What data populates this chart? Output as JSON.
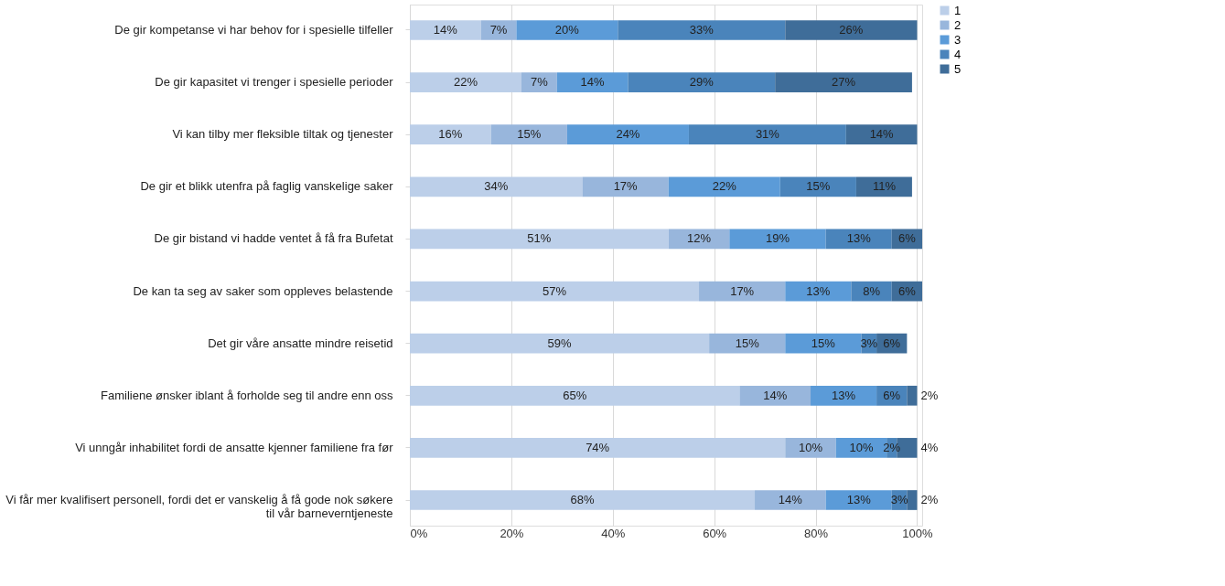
{
  "chart_data": {
    "type": "bar",
    "orientation": "horizontal",
    "stacked": true,
    "grid": "x",
    "legend": "right",
    "categories": [
      "De gir kompetanse vi har behov for i spesielle tilfeller",
      "De gir kapasitet vi trenger i spesielle perioder",
      "Vi kan tilby mer fleksible tiltak og tjenester",
      "De gir et blikk utenfra på faglig vanskelige saker",
      "De gir bistand vi hadde ventet å få fra Bufetat",
      "De kan ta seg av saker som oppleves belastende",
      "Det gir våre ansatte mindre reisetid",
      "Familiene ønsker iblant å forholde seg til andre enn oss",
      "Vi unngår inhabilitet fordi de ansatte kjenner familiene fra før",
      "Vi får mer kvalifisert personell, fordi det er vanskelig å få gode nok søkere til vår barneverntjeneste"
    ],
    "series": [
      {
        "name": "1",
        "color": "#bccfe9",
        "values": [
          14,
          22,
          16,
          34,
          51,
          57,
          59,
          65,
          74,
          68
        ],
        "value_labels": [
          "14%",
          "22%",
          "16%",
          "34%",
          "51%",
          "57%",
          "59%",
          "65%",
          "74%",
          "68%"
        ]
      },
      {
        "name": "2",
        "color": "#98b6dc",
        "values": [
          7,
          7,
          15,
          17,
          12,
          17,
          15,
          14,
          10,
          14
        ],
        "value_labels": [
          "7%",
          "7%",
          "15%",
          "17%",
          "12%",
          "17%",
          "15%",
          "14%",
          "10%",
          "14%"
        ]
      },
      {
        "name": "3",
        "color": "#5b9bd8",
        "values": [
          20,
          14,
          24,
          22,
          19,
          13,
          15,
          13,
          10,
          13
        ],
        "value_labels": [
          "20%",
          "14%",
          "24%",
          "22%",
          "19%",
          "13%",
          "15%",
          "13%",
          "10%",
          "13%"
        ]
      },
      {
        "name": "4",
        "color": "#4a84bb",
        "values": [
          33,
          29,
          31,
          15,
          13,
          8,
          3,
          6,
          2,
          3
        ],
        "value_labels": [
          "33%",
          "29%",
          "31%",
          "15%",
          "13%",
          "8%",
          "3%",
          "6%",
          "2%",
          "3%"
        ]
      },
      {
        "name": "5",
        "color": "#3f6d99",
        "values": [
          26,
          27,
          14,
          11,
          6,
          6,
          6,
          2,
          4,
          2
        ],
        "value_labels": [
          "26%",
          "27%",
          "14%",
          "11%",
          "6%",
          "6%",
          "6%",
          "2%",
          "4%",
          "2%"
        ]
      }
    ],
    "xlim": [
      0,
      101
    ],
    "xticks": [
      {
        "value": 0,
        "label": "0%"
      },
      {
        "value": 20,
        "label": "20%"
      },
      {
        "value": 40,
        "label": "40%"
      },
      {
        "value": 60,
        "label": "60%"
      },
      {
        "value": 80,
        "label": "80%"
      },
      {
        "value": 100,
        "label": "100%"
      }
    ]
  }
}
